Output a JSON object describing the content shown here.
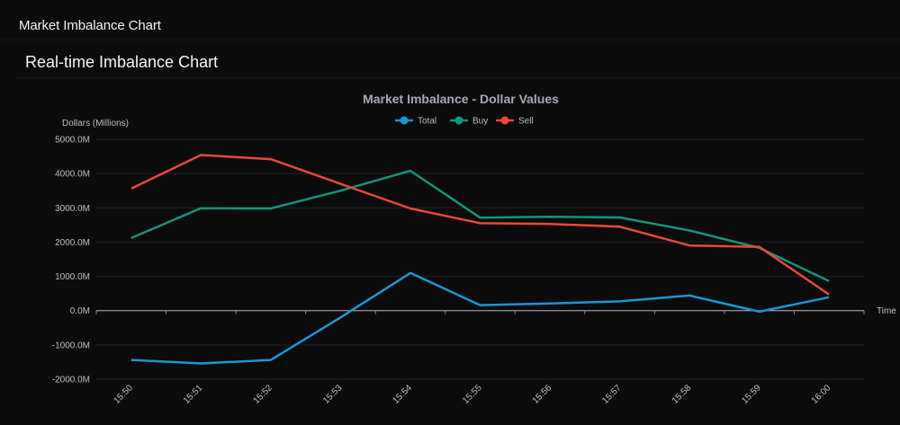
{
  "app": {
    "title": "Market Imbalance Chart"
  },
  "panel": {
    "title": "Real-time Imbalance Chart"
  },
  "chart_data": {
    "type": "line",
    "title": "Market Imbalance - Dollar Values",
    "xlabel": "Time",
    "ylabel": "Dollars (Millions)",
    "ylim": [
      -2000,
      5000
    ],
    "yticks": [
      5000,
      4000,
      3000,
      2000,
      1000,
      0,
      -1000,
      -2000
    ],
    "ytick_labels": [
      "5000.0M",
      "4000.0M",
      "3000.0M",
      "2000.0M",
      "1000.0M",
      "0.0M",
      "-1000.0M",
      "-2000.0M"
    ],
    "grid": true,
    "legend_position": "top-center",
    "categories": [
      "15:50",
      "15:51",
      "15:52",
      "15:53",
      "15:54",
      "15:55",
      "15:56",
      "15:57",
      "15:58",
      "15:59",
      "16:00"
    ],
    "series": [
      {
        "name": "Total",
        "color": "#1a96d4",
        "values": [
          -1440,
          -1540,
          -1440,
          -200,
          1100,
          160,
          210,
          270,
          440,
          -30,
          390
        ]
      },
      {
        "name": "Buy",
        "color": "#13957d",
        "values": [
          2120,
          2990,
          2980,
          3500,
          4080,
          2710,
          2740,
          2720,
          2340,
          1830,
          860
        ]
      },
      {
        "name": "Sell",
        "color": "#e8483c",
        "values": [
          3560,
          4540,
          4420,
          3700,
          2980,
          2550,
          2530,
          2450,
          1900,
          1860,
          470
        ]
      }
    ]
  }
}
